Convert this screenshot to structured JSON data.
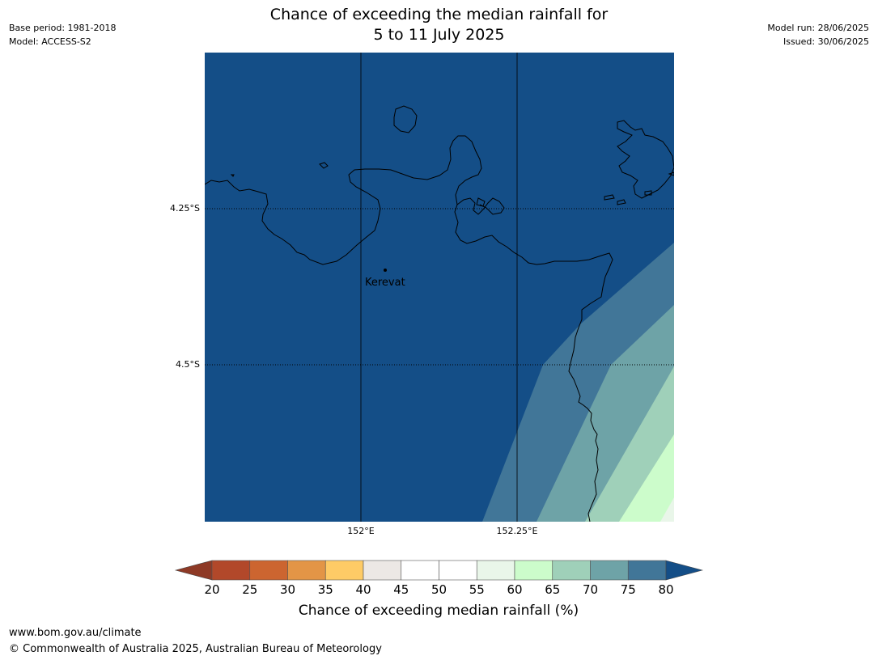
{
  "title": {
    "line1": "Chance of exceeding the median rainfall for",
    "line2": "5 to 11 July 2025"
  },
  "meta_left": {
    "base_period": "Base period: 1981-2018",
    "model": "Model: ACCESS-S2"
  },
  "meta_right": {
    "model_run": "Model run: 28/06/2025",
    "issued": "Issued: 30/06/2025"
  },
  "map": {
    "background_class_percent": "75-80+",
    "lat_labels": [
      "4.25°S",
      "4.5°S"
    ],
    "lon_labels": [
      "152°E",
      "152.25°E"
    ],
    "place": {
      "name": "Kerevat"
    },
    "bands": [
      {
        "range": "70-75",
        "color": "#417698"
      },
      {
        "range": "65-70",
        "color": "#6ea3a7"
      },
      {
        "range": "60-65",
        "color": "#9fd0b9"
      },
      {
        "range": "55-60",
        "color": "#ccfccb"
      },
      {
        "range": "50-55",
        "color": "#e9f6e9"
      }
    ],
    "base_color": "#144e87",
    "land_line_color": "#000000"
  },
  "colorbar": {
    "ticks": [
      "20",
      "25",
      "30",
      "35",
      "40",
      "45",
      "50",
      "55",
      "60",
      "65",
      "70",
      "75",
      "80"
    ],
    "under_color": "#8e3a26",
    "over_color": "#144e87",
    "colors": [
      "#b2482a",
      "#cc6530",
      "#e39546",
      "#fecb66",
      "#ece8e5",
      "#ffffff",
      "#ffffff",
      "#e9f6e9",
      "#ccfccb",
      "#9fd0b9",
      "#6ea3a7",
      "#417698"
    ],
    "label": "Chance of exceeding median rainfall (%)"
  },
  "footer": {
    "url": "www.bom.gov.au/climate",
    "copyright": "© Commonwealth of Australia 2025, Australian Bureau of Meteorology"
  }
}
